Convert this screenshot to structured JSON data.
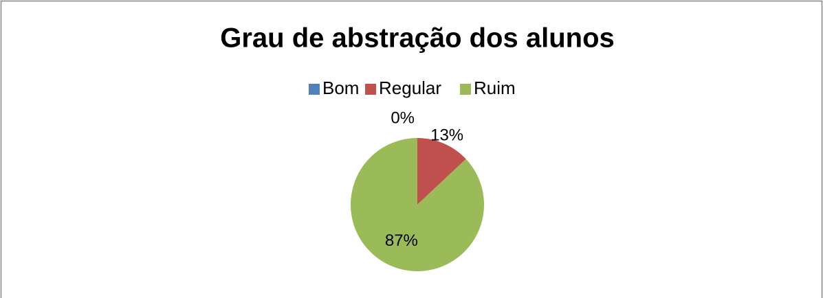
{
  "chart_data": {
    "type": "pie",
    "title": "Grau de abstração dos alunos",
    "categories": [
      "Bom",
      "Regular",
      "Ruim"
    ],
    "values": [
      0,
      13,
      87
    ],
    "value_labels": [
      "0%",
      "13%",
      "87%"
    ],
    "colors": [
      "#4f81bd",
      "#c0504d",
      "#9bbb59"
    ],
    "legend": "top"
  }
}
